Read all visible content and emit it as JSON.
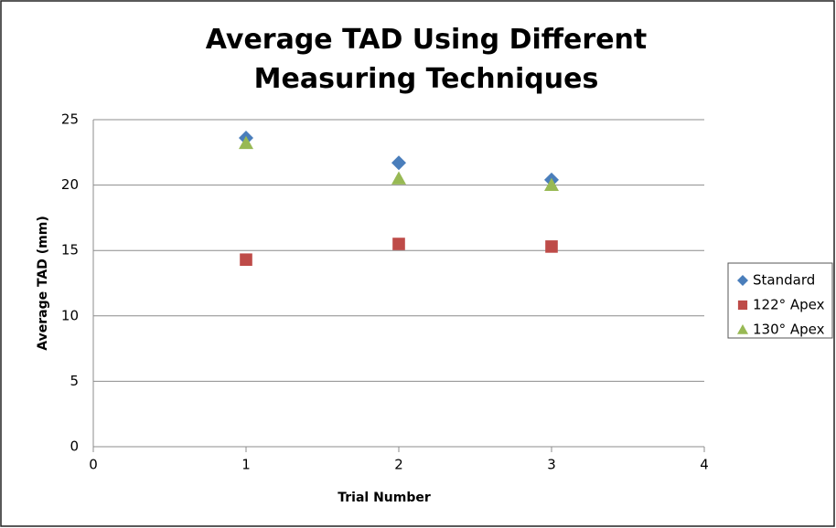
{
  "chart_data": {
    "type": "scatter",
    "title": "Average TAD Using Different Measuring Techniques",
    "x_label": "Trial Number",
    "y_label": "Average TAD (mm)",
    "xlim": [
      0,
      4
    ],
    "xticks": [
      0,
      1,
      2,
      3,
      4
    ],
    "ylim": [
      0,
      25
    ],
    "yticks": [
      0,
      5,
      10,
      15,
      20,
      25
    ],
    "grid": true,
    "legend": "right",
    "series": [
      {
        "name": "Standard",
        "color": "#4a7ebb",
        "marker": "diamond",
        "x": [
          1,
          2,
          3
        ],
        "values": [
          23.6,
          21.7,
          20.4
        ]
      },
      {
        "name": "122° Apex",
        "color": "#be4b48",
        "marker": "square",
        "x": [
          1,
          2,
          3
        ],
        "values": [
          14.3,
          15.5,
          15.3
        ]
      },
      {
        "name": "130° Apex",
        "color": "#98b954",
        "marker": "triangle",
        "x": [
          1,
          2,
          3
        ],
        "values": [
          23.2,
          20.5,
          20.0
        ]
      }
    ]
  }
}
